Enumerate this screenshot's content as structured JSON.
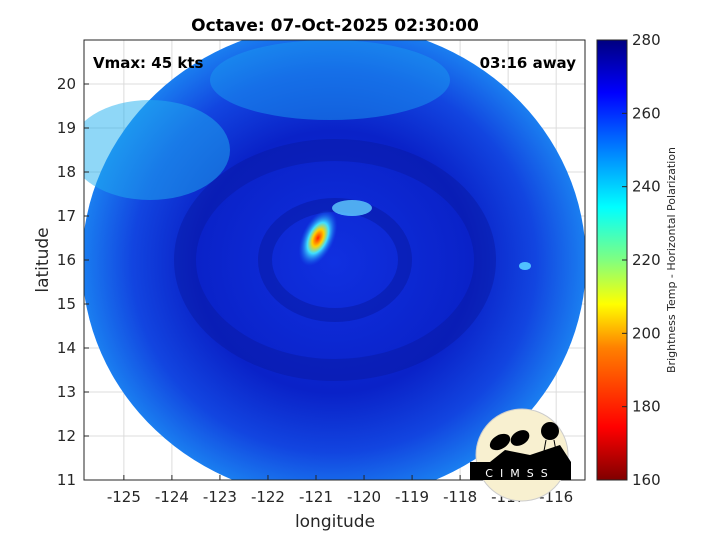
{
  "title": "Octave: 07-Oct-2025 02:30:00",
  "annotations": {
    "vmax": "Vmax: 45 kts",
    "time_away": "03:16 away"
  },
  "axes": {
    "xlabel": "longitude",
    "ylabel": "latitude",
    "xlim": [
      -125.83,
      -115.4
    ],
    "ylim": [
      11,
      21
    ],
    "xticks": [
      "-125",
      "-124",
      "-123",
      "-122",
      "-121",
      "-120",
      "-119",
      "-118",
      "-117",
      "-116"
    ],
    "yticks": [
      "11",
      "12",
      "13",
      "14",
      "15",
      "16",
      "17",
      "18",
      "19",
      "20"
    ],
    "grid": true
  },
  "colorbar": {
    "label": "Brightness Temp - Horizontal Polarization",
    "range": [
      160,
      280
    ],
    "ticks": [
      "160",
      "180",
      "200",
      "220",
      "240",
      "260",
      "280"
    ],
    "colormap": [
      "#800000",
      "#ff0000",
      "#ff8000",
      "#ffff00",
      "#80ff80",
      "#00ffff",
      "#0080ff",
      "#0000ff",
      "#000080"
    ]
  },
  "storm_center": {
    "lon": -120.6,
    "lat": 16.2
  },
  "logo": {
    "text": "CIMSS"
  }
}
